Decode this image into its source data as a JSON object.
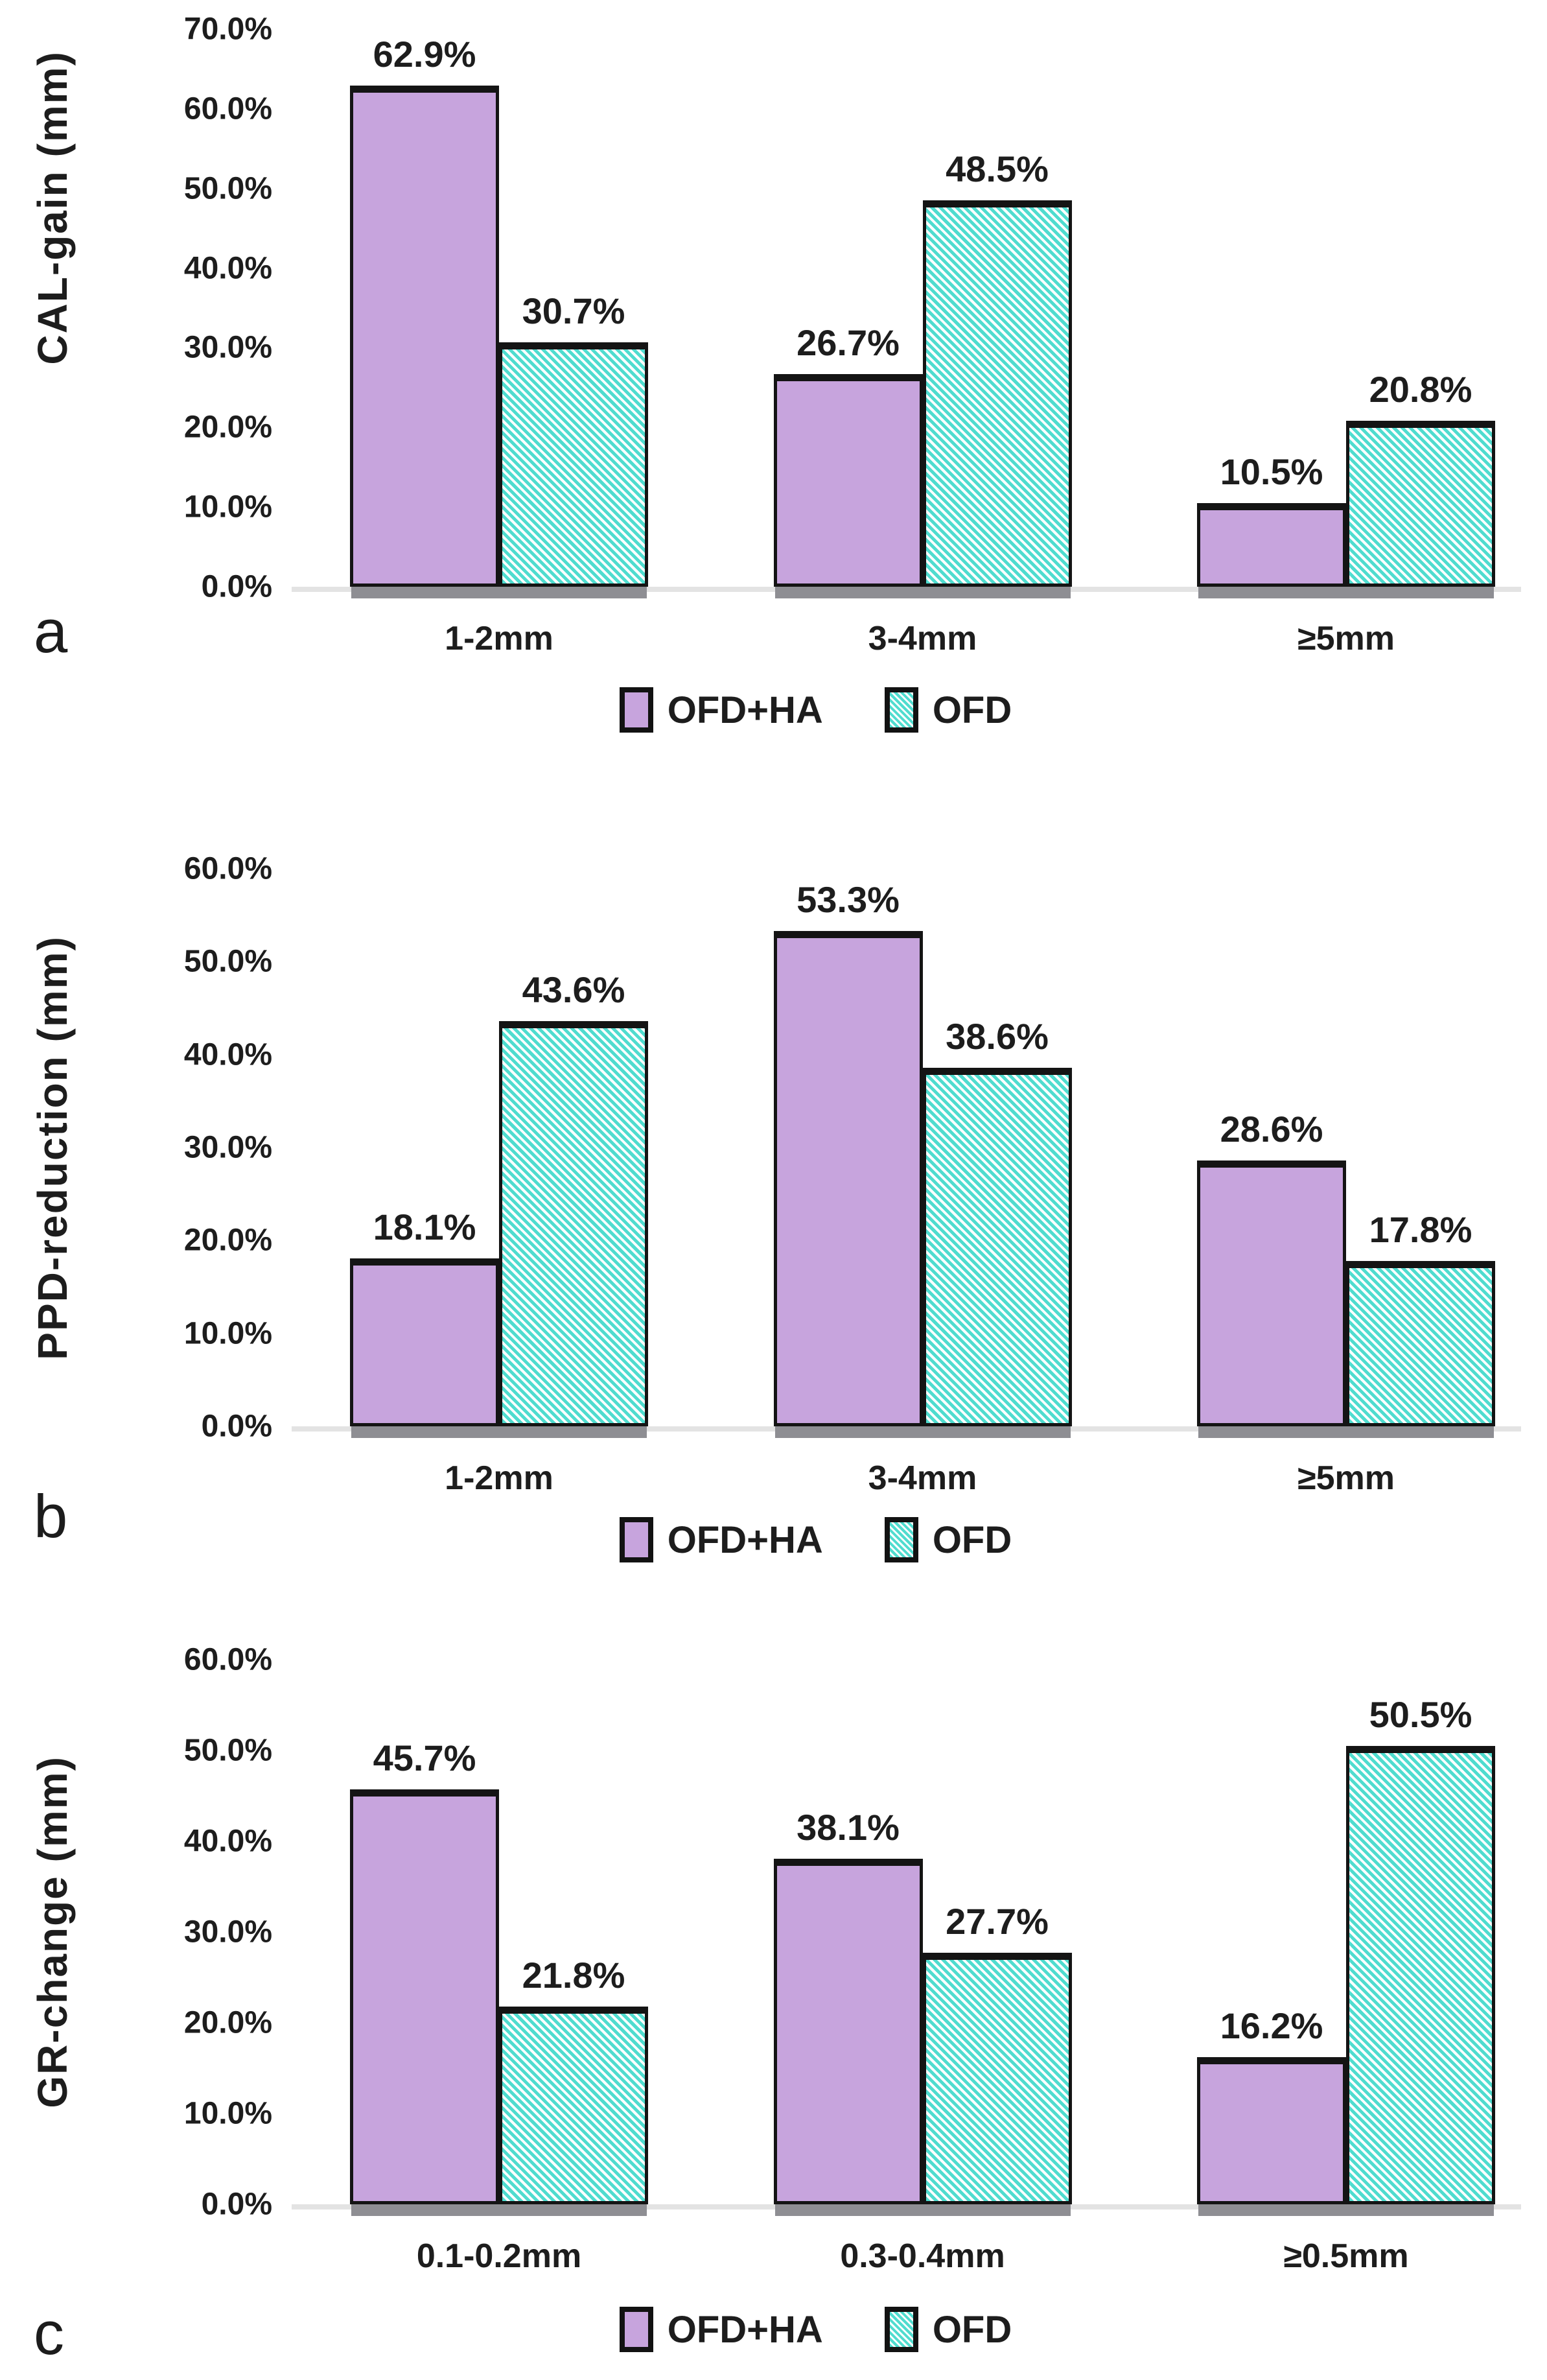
{
  "figure": {
    "background": "#ffffff",
    "description": "Three stacked grouped bar charts comparing OFD+HA vs OFD"
  },
  "colors": {
    "bar_fill_ofd_ha": "#c7a4dd",
    "bar_hatch_ofd": "#4fdccf",
    "bar_hatch_background": "#ffffff",
    "bar_border": "#141414",
    "axis_line": "#e3e3e3",
    "bar_shadow": "#8e8e93",
    "text": "#1d1d1d"
  },
  "legend": {
    "items": [
      {
        "label": "OFD+HA",
        "swatch": "purple-solid"
      },
      {
        "label": "OFD",
        "swatch": "teal-hatched"
      }
    ]
  },
  "chart_data": [
    {
      "type": "bar",
      "panel": "a",
      "ylabel": "CAL-gain (mm)",
      "xlabel": "",
      "categories": [
        "1-2mm",
        "3-4mm",
        "≥5mm"
      ],
      "series": [
        {
          "name": "OFD+HA",
          "values": [
            62.9,
            26.7,
            10.5
          ],
          "labels": [
            "62.9%",
            "26.7%",
            "10.5%"
          ]
        },
        {
          "name": "OFD",
          "values": [
            30.7,
            48.5,
            20.8
          ],
          "labels": [
            "30.7%",
            "48.5%",
            "20.8%"
          ]
        }
      ],
      "ylim": [
        0,
        70
      ],
      "ytick_step": 10,
      "ytick_labels": [
        "0.0%",
        "10.0%",
        "20.0%",
        "30.0%",
        "40.0%",
        "50.0%",
        "60.0%",
        "70.0%"
      ],
      "grid": false,
      "legend_position": "bottom"
    },
    {
      "type": "bar",
      "panel": "b",
      "ylabel": "PPD-reduction (mm)",
      "xlabel": "",
      "categories": [
        "1-2mm",
        "3-4mm",
        "≥5mm"
      ],
      "series": [
        {
          "name": "OFD+HA",
          "values": [
            18.1,
            53.3,
            28.6
          ],
          "labels": [
            "18.1%",
            "53.3%",
            "28.6%"
          ]
        },
        {
          "name": "OFD",
          "values": [
            43.6,
            38.6,
            17.8
          ],
          "labels": [
            "43.6%",
            "38.6%",
            "17.8%"
          ]
        }
      ],
      "ylim": [
        0,
        60
      ],
      "ytick_step": 10,
      "ytick_labels": [
        "0.0%",
        "10.0%",
        "20.0%",
        "30.0%",
        "40.0%",
        "50.0%",
        "60.0%"
      ],
      "grid": false,
      "legend_position": "bottom"
    },
    {
      "type": "bar",
      "panel": "c",
      "ylabel": "GR-change (mm)",
      "xlabel": "",
      "categories": [
        "0.1-0.2mm",
        "0.3-0.4mm",
        "≥0.5mm"
      ],
      "series": [
        {
          "name": "OFD+HA",
          "values": [
            45.7,
            38.1,
            16.2
          ],
          "labels": [
            "45.7%",
            "38.1%",
            "16.2%"
          ]
        },
        {
          "name": "OFD",
          "values": [
            21.8,
            27.7,
            50.5
          ],
          "labels": [
            "21.8%",
            "27.7%",
            "50.5%"
          ]
        }
      ],
      "ylim": [
        0,
        60
      ],
      "ytick_step": 10,
      "ytick_labels": [
        "0.0%",
        "10.0%",
        "20.0%",
        "30.0%",
        "40.0%",
        "50.0%",
        "60.0%"
      ],
      "grid": false,
      "legend_position": "bottom"
    }
  ]
}
